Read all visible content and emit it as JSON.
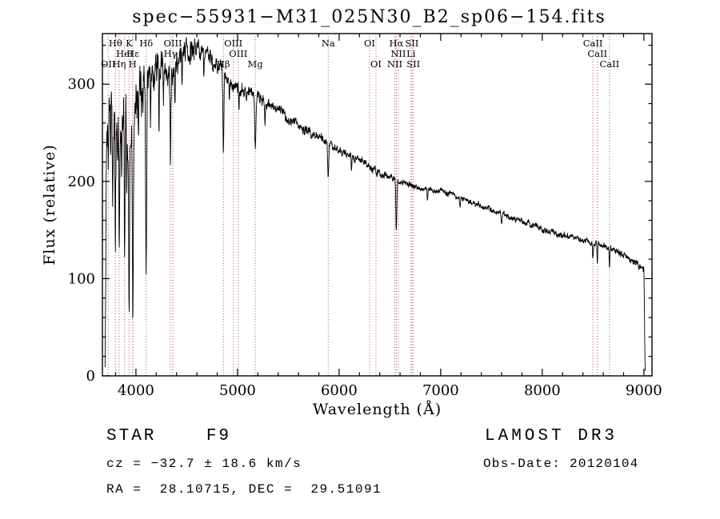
{
  "footer": {
    "class_label": "STAR    F9",
    "survey": "LAMOST DR3",
    "cz": "cz = −32.7 ± 18.6 km/s",
    "obs_date": "Obs-Date: 20120104",
    "radec": "RA =  28.10715, DEC =  29.51091"
  },
  "chart_data": {
    "type": "line",
    "title": "spec−55931−M31_025N30_B2_sp06−154.fits",
    "xlabel": "Wavelength (Å)",
    "ylabel": "Flux (relative)",
    "xlim": [
      3670,
      9080
    ],
    "ylim": [
      0,
      352
    ],
    "x_ticks": [
      4000,
      5000,
      6000,
      7000,
      8000,
      9000
    ],
    "y_ticks": [
      0,
      100,
      200,
      300
    ],
    "x_minor_step": 200,
    "y_minor_step": 20,
    "grid": false,
    "legend": "none",
    "line_color": "#000000",
    "marker_color": "#b04a4a",
    "seed": 20120104,
    "sample_step": 2.5,
    "sample_range": [
      3696,
      9014
    ],
    "spectral_lines": [
      {
        "label": "Hθ",
        "wavelength": 3798,
        "row": 1
      },
      {
        "label": "K",
        "wavelength": 3933,
        "row": 1
      },
      {
        "label": "Hδ",
        "wavelength": 4101,
        "row": 1
      },
      {
        "label": "OIII",
        "wavelength": 4363,
        "row": 1
      },
      {
        "label": "OIII",
        "wavelength": 4959,
        "row": 1
      },
      {
        "label": "Na",
        "wavelength": 5893,
        "row": 1
      },
      {
        "label": "OI",
        "wavelength": 6300,
        "row": 1
      },
      {
        "label": "Hα",
        "wavelength": 6563,
        "row": 1
      },
      {
        "label": "SII",
        "wavelength": 6716,
        "row": 1
      },
      {
        "label": "CaII",
        "wavelength": 8498,
        "row": 1
      },
      {
        "label": "HeI",
        "wavelength": 3889,
        "row": 2
      },
      {
        "label": "Hε",
        "wavelength": 3970,
        "row": 2
      },
      {
        "label": "Hγ",
        "wavelength": 4340,
        "row": 2
      },
      {
        "label": "OIII",
        "wavelength": 5007,
        "row": 2
      },
      {
        "label": "NII",
        "wavelength": 6583,
        "row": 2
      },
      {
        "label": "Li",
        "wavelength": 6708,
        "row": 2
      },
      {
        "label": "CaII",
        "wavelength": 8542,
        "row": 2
      },
      {
        "label": "OII",
        "wavelength": 3727,
        "row": 3
      },
      {
        "label": "Hη",
        "wavelength": 3835,
        "row": 3
      },
      {
        "label": "H",
        "wavelength": 3968,
        "row": 3
      },
      {
        "label": "Hβ",
        "wavelength": 4861,
        "row": 3
      },
      {
        "label": "Mg",
        "wavelength": 5175,
        "row": 3
      },
      {
        "label": "OI",
        "wavelength": 6363,
        "row": 3
      },
      {
        "label": "NII",
        "wavelength": 6548,
        "row": 3
      },
      {
        "label": "SII",
        "wavelength": 6731,
        "row": 3
      },
      {
        "label": "CaII",
        "wavelength": 8662,
        "row": 3
      }
    ],
    "continuum": [
      [
        3696,
        2
      ],
      [
        3700,
        60
      ],
      [
        3705,
        170
      ],
      [
        3710,
        240
      ],
      [
        3716,
        262
      ],
      [
        3725,
        268
      ],
      [
        3760,
        268
      ],
      [
        3800,
        266
      ],
      [
        3840,
        260
      ],
      [
        3880,
        256
      ],
      [
        3920,
        250
      ],
      [
        3960,
        248
      ],
      [
        4000,
        278
      ],
      [
        4040,
        295
      ],
      [
        4080,
        298
      ],
      [
        4120,
        300
      ],
      [
        4160,
        312
      ],
      [
        4200,
        318
      ],
      [
        4240,
        316
      ],
      [
        4280,
        318
      ],
      [
        4320,
        318
      ],
      [
        4360,
        318
      ],
      [
        4400,
        324
      ],
      [
        4450,
        329
      ],
      [
        4500,
        332
      ],
      [
        4550,
        334
      ],
      [
        4600,
        334
      ],
      [
        4650,
        332
      ],
      [
        4700,
        329
      ],
      [
        4750,
        325
      ],
      [
        4800,
        321
      ],
      [
        4850,
        315
      ],
      [
        4900,
        304
      ],
      [
        4950,
        300
      ],
      [
        5000,
        296
      ],
      [
        5100,
        292
      ],
      [
        5200,
        286
      ],
      [
        5300,
        279
      ],
      [
        5400,
        272
      ],
      [
        5500,
        264
      ],
      [
        5600,
        258
      ],
      [
        5700,
        251
      ],
      [
        5800,
        245
      ],
      [
        5900,
        238
      ],
      [
        6000,
        233
      ],
      [
        6100,
        227
      ],
      [
        6200,
        221
      ],
      [
        6300,
        215
      ],
      [
        6400,
        209
      ],
      [
        6500,
        204
      ],
      [
        6600,
        200
      ],
      [
        6700,
        197
      ],
      [
        6800,
        194
      ],
      [
        6900,
        191
      ],
      [
        7000,
        189
      ],
      [
        7100,
        186
      ],
      [
        7200,
        183
      ],
      [
        7300,
        179
      ],
      [
        7400,
        175
      ],
      [
        7500,
        171
      ],
      [
        7600,
        167
      ],
      [
        7700,
        163
      ],
      [
        7800,
        159
      ],
      [
        7900,
        155
      ],
      [
        8000,
        151
      ],
      [
        8100,
        148
      ],
      [
        8200,
        145
      ],
      [
        8300,
        142
      ],
      [
        8400,
        139
      ],
      [
        8500,
        136
      ],
      [
        8600,
        133
      ],
      [
        8700,
        129
      ],
      [
        8800,
        124
      ],
      [
        8900,
        118
      ],
      [
        8960,
        113
      ],
      [
        9000,
        110
      ],
      [
        9006,
        60
      ],
      [
        9010,
        20
      ],
      [
        9014,
        2
      ]
    ],
    "absorption_lines": [
      [
        3727,
        40,
        4
      ],
      [
        3750,
        60,
        4
      ],
      [
        3771,
        70,
        4
      ],
      [
        3798,
        120,
        5
      ],
      [
        3820,
        50,
        4
      ],
      [
        3835,
        140,
        5
      ],
      [
        3860,
        60,
        4
      ],
      [
        3889,
        150,
        5
      ],
      [
        3910,
        60,
        4
      ],
      [
        3933,
        185,
        6
      ],
      [
        3970,
        190,
        7
      ],
      [
        4026,
        40,
        4
      ],
      [
        4101,
        200,
        7
      ],
      [
        4144,
        40,
        4
      ],
      [
        4227,
        70,
        4
      ],
      [
        4271,
        45,
        4
      ],
      [
        4340,
        95,
        7
      ],
      [
        4383,
        45,
        4
      ],
      [
        4455,
        28,
        4
      ],
      [
        4531,
        22,
        4
      ],
      [
        4668,
        20,
        4
      ],
      [
        4861,
        80,
        7
      ],
      [
        4920,
        20,
        4
      ],
      [
        5015,
        18,
        4
      ],
      [
        5175,
        52,
        9
      ],
      [
        5270,
        20,
        5
      ],
      [
        5893,
        30,
        7
      ],
      [
        6122,
        12,
        5
      ],
      [
        6563,
        52,
        7
      ],
      [
        6870,
        10,
        6
      ],
      [
        7190,
        8,
        6
      ],
      [
        7600,
        12,
        8
      ],
      [
        8498,
        15,
        5
      ],
      [
        8542,
        22,
        5
      ],
      [
        8662,
        20,
        5
      ]
    ],
    "noise_profile": [
      [
        3696,
        26
      ],
      [
        3800,
        28
      ],
      [
        3900,
        28
      ],
      [
        4000,
        26
      ],
      [
        4100,
        24
      ],
      [
        4200,
        20
      ],
      [
        4300,
        17
      ],
      [
        4400,
        14
      ],
      [
        4500,
        11
      ],
      [
        4600,
        10
      ],
      [
        4700,
        9
      ],
      [
        4800,
        8
      ],
      [
        5000,
        7
      ],
      [
        5200,
        6
      ],
      [
        5500,
        5
      ],
      [
        6000,
        4.5
      ],
      [
        6500,
        3.5
      ],
      [
        7000,
        3
      ],
      [
        7500,
        3
      ],
      [
        8000,
        3
      ],
      [
        8500,
        3.2
      ],
      [
        9000,
        3.5
      ]
    ]
  }
}
